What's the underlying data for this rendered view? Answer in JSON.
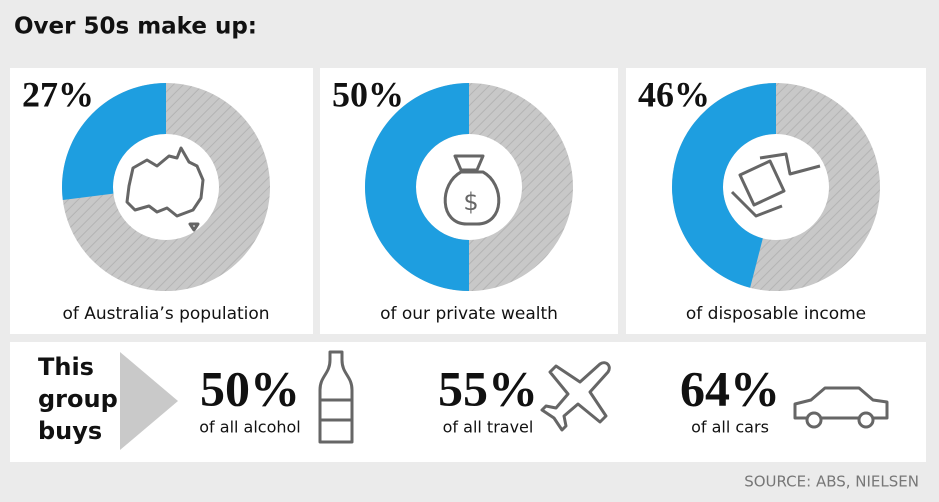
{
  "title": "Over 50s make up:",
  "chart_data": [
    {
      "type": "donut",
      "values": [
        27
      ],
      "value_labels": [
        "27%"
      ],
      "caption": "of Australia’s population",
      "color": "#1e9ee0",
      "rest_color": "#c8c8c8"
    },
    {
      "type": "donut",
      "values": [
        50
      ],
      "value_labels": [
        "50%"
      ],
      "caption": "of our private wealth",
      "color": "#1e9ee0",
      "rest_color": "#c8c8c8"
    },
    {
      "type": "donut",
      "values": [
        46
      ],
      "value_labels": [
        "46%"
      ],
      "caption": "of disposable income",
      "color": "#1e9ee0",
      "rest_color": "#c8c8c8"
    }
  ],
  "buys": {
    "heading": [
      "This",
      "group",
      "buys"
    ],
    "items": [
      {
        "label": "50%",
        "text": "of all alcohol"
      },
      {
        "label": "55%",
        "text": "of all travel"
      },
      {
        "label": "64%",
        "text": "of all cars"
      }
    ]
  },
  "source": "SOURCE: ABS, NIELSEN"
}
